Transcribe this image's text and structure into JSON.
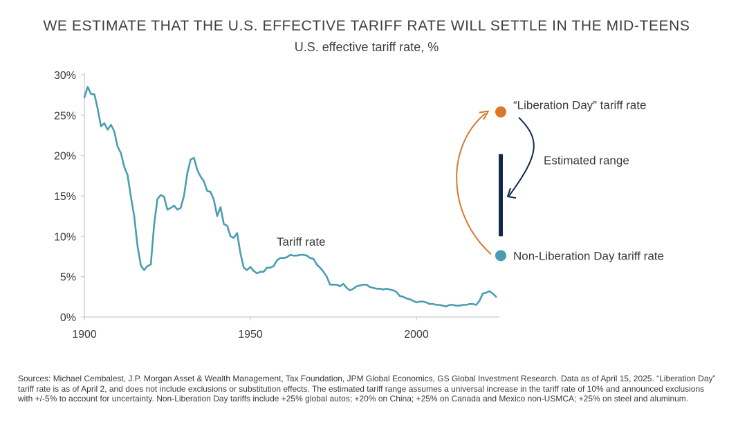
{
  "title": "WE ESTIMATE THAT THE U.S. EFFECTIVE TARIFF RATE WILL SETTLE IN THE MID-TEENS",
  "subtitle": "U.S. effective tariff rate, %",
  "footnote": "Sources: Michael Cembalest, J.P. Morgan Asset & Wealth Management, Tax Foundation, JPM Global Economics, GS Global Investment Research. Data as of April 15, 2025. “Liberation Day” tariff rate is as of April 2, and does not include exclusions or substitution effects. The estimated tariff range assumes a universal increase in the tariff rate of 10% and announced exclusions with +/-5% to account for uncertainty. Non-Liberation Day tariffs include +25% global autos; +20% on China; +25% on Canada and Mexico non-USMCA;  +25% on steel and aluminum.",
  "colors": {
    "line": "#4a9db0",
    "liberation_dot": "#d9782c",
    "non_liberation_dot": "#4a9db0",
    "range_bar": "#13284f",
    "orange_arrow": "#d9782c",
    "navy_arrow": "#13284f",
    "axis": "#bfbfbf",
    "text": "#3a3a3a"
  },
  "chart_data": {
    "type": "line",
    "xlim": [
      1900,
      2025
    ],
    "ylim": [
      0,
      30
    ],
    "x_ticks": [
      1900,
      1950,
      2000
    ],
    "x_tick_labels": [
      "1900",
      "1950",
      "2000"
    ],
    "y_ticks": [
      0,
      5,
      10,
      15,
      20,
      25,
      30
    ],
    "y_tick_labels": [
      "0%",
      "5%",
      "10%",
      "15%",
      "20%",
      "25%",
      "30%"
    ],
    "grid": false,
    "series": [
      {
        "name": "Tariff rate",
        "x": [
          1900,
          1901,
          1902,
          1903,
          1904,
          1905,
          1906,
          1907,
          1908,
          1909,
          1910,
          1911,
          1912,
          1913,
          1914,
          1915,
          1916,
          1917,
          1918,
          1919,
          1920,
          1921,
          1922,
          1923,
          1924,
          1925,
          1926,
          1927,
          1928,
          1929,
          1930,
          1931,
          1932,
          1933,
          1934,
          1935,
          1936,
          1937,
          1938,
          1939,
          1940,
          1941,
          1942,
          1943,
          1944,
          1945,
          1946,
          1947,
          1948,
          1949,
          1950,
          1951,
          1952,
          1953,
          1954,
          1955,
          1956,
          1957,
          1958,
          1959,
          1960,
          1961,
          1962,
          1963,
          1964,
          1965,
          1966,
          1967,
          1968,
          1969,
          1970,
          1971,
          1972,
          1973,
          1974,
          1975,
          1976,
          1977,
          1978,
          1979,
          1980,
          1981,
          1982,
          1983,
          1984,
          1985,
          1986,
          1987,
          1988,
          1989,
          1990,
          1991,
          1992,
          1993,
          1994,
          1995,
          1996,
          1997,
          1998,
          1999,
          2000,
          2001,
          2002,
          2003,
          2004,
          2005,
          2006,
          2007,
          2008,
          2009,
          2010,
          2011,
          2012,
          2013,
          2014,
          2015,
          2016,
          2017,
          2018,
          2019,
          2020,
          2021,
          2022,
          2023,
          2024
        ],
        "values": [
          27.2,
          28.5,
          27.6,
          27.6,
          25.8,
          23.6,
          24.0,
          23.2,
          23.8,
          23.0,
          21.1,
          20.3,
          18.6,
          17.6,
          14.9,
          12.5,
          8.8,
          6.4,
          5.8,
          6.3,
          6.5,
          11.4,
          14.6,
          15.1,
          14.9,
          13.3,
          13.5,
          13.8,
          13.3,
          13.5,
          15.0,
          17.8,
          19.5,
          19.7,
          18.2,
          17.4,
          16.8,
          15.6,
          15.5,
          14.5,
          12.5,
          13.6,
          11.5,
          11.3,
          10.0,
          9.8,
          10.4,
          7.9,
          6.1,
          5.8,
          6.2,
          5.7,
          5.4,
          5.6,
          5.6,
          6.1,
          6.1,
          6.3,
          7.0,
          7.3,
          7.3,
          7.4,
          7.7,
          7.6,
          7.6,
          7.7,
          7.7,
          7.6,
          7.3,
          7.2,
          6.5,
          6.1,
          5.6,
          5.0,
          4.0,
          4.0,
          4.0,
          3.8,
          4.1,
          3.6,
          3.3,
          3.5,
          3.8,
          3.9,
          4.0,
          4.0,
          3.7,
          3.6,
          3.5,
          3.5,
          3.4,
          3.5,
          3.4,
          3.3,
          3.1,
          2.6,
          2.5,
          2.3,
          2.2,
          2.0,
          1.8,
          1.9,
          1.9,
          1.8,
          1.6,
          1.6,
          1.5,
          1.5,
          1.4,
          1.3,
          1.5,
          1.5,
          1.4,
          1.4,
          1.5,
          1.5,
          1.6,
          1.6,
          1.5,
          2.0,
          2.9,
          3.0,
          3.2,
          2.9,
          2.5
        ]
      }
    ],
    "labels": {
      "series_label": "Tariff rate",
      "liberation_day": "“Liberation Day” tariff rate",
      "estimated_range": "Estimated range",
      "non_liberation_day": "Non-Liberation Day tariff rate"
    },
    "points": {
      "liberation_day_rate": 25.4,
      "non_liberation_day_rate": 7.6
    },
    "estimated_range": [
      10.0,
      20.0
    ]
  }
}
